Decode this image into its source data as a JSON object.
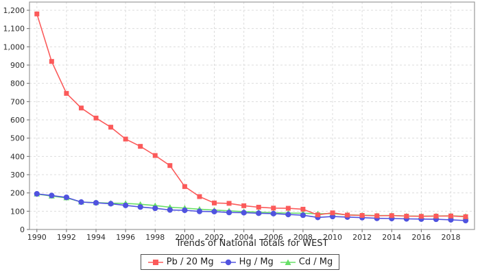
{
  "chart_data": {
    "type": "line",
    "xlabel": "Trends of National Totals for WEST",
    "ylabel": "",
    "x": [
      1990,
      1991,
      1992,
      1993,
      1994,
      1995,
      1996,
      1997,
      1998,
      1999,
      2000,
      2001,
      2002,
      2003,
      2004,
      2005,
      2006,
      2007,
      2008,
      2009,
      2010,
      2011,
      2012,
      2013,
      2014,
      2015,
      2016,
      2017,
      2018,
      2019
    ],
    "series": [
      {
        "name": "Pb / 20 Mg",
        "color": "#fb5a5a",
        "marker": "square",
        "values": [
          1180,
          920,
          745,
          665,
          610,
          560,
          495,
          455,
          405,
          350,
          235,
          180,
          145,
          143,
          130,
          122,
          117,
          116,
          111,
          80,
          91,
          79,
          77,
          75,
          76,
          73,
          72,
          73,
          74,
          70
        ]
      },
      {
        "name": "Hg / Mg",
        "color": "#5053df",
        "marker": "circle",
        "values": [
          195,
          186,
          176,
          150,
          146,
          141,
          132,
          123,
          116,
          107,
          105,
          99,
          98,
          93,
          92,
          89,
          87,
          82,
          78,
          66,
          71,
          68,
          65,
          61,
          60,
          58,
          57,
          56,
          53,
          49
        ]
      },
      {
        "name": "Cd / Mg",
        "color": "#66df66",
        "marker": "triangle-up",
        "values": [
          194,
          183,
          173,
          150,
          147,
          144,
          143,
          138,
          131,
          122,
          117,
          111,
          106,
          102,
          98,
          95,
          92,
          90,
          89,
          86,
          87,
          80,
          78,
          76,
          77,
          74,
          73,
          74,
          75,
          72
        ]
      }
    ],
    "xticks": [
      1990,
      1992,
      1994,
      1996,
      1998,
      2000,
      2002,
      2004,
      2006,
      2008,
      2010,
      2012,
      2014,
      2016,
      2018
    ],
    "yticks": [
      0,
      100,
      200,
      300,
      400,
      500,
      600,
      700,
      800,
      900,
      1000,
      1100,
      1200
    ],
    "ytick_labels": [
      "0",
      "100",
      "200",
      "300",
      "400",
      "500",
      "600",
      "700",
      "800",
      "900",
      "1,000",
      "1,100",
      "1,200"
    ],
    "xlim": [
      1989.5,
      2019.6
    ],
    "ylim": [
      0,
      1245
    ],
    "grid": true,
    "legend_position": "bottom",
    "colors": {
      "background": "#ffffff",
      "plot_border": "#9a9a9a",
      "gridline": "#dcdcdc",
      "tick": "#666666",
      "tick_label": "#2b2b2b"
    }
  }
}
